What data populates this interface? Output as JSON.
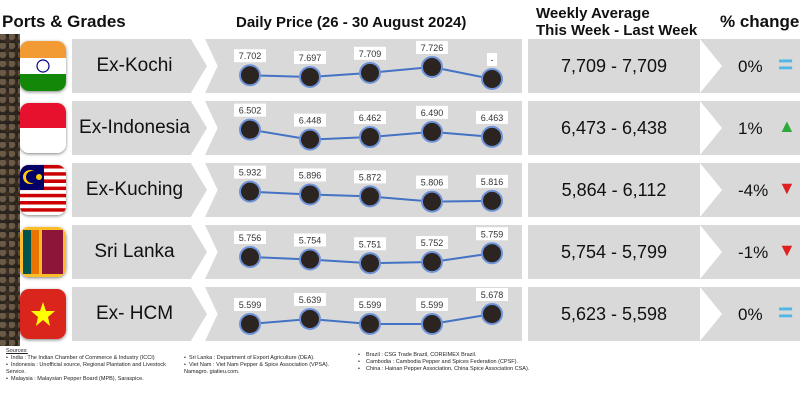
{
  "headers": {
    "ports": "Ports & Grades",
    "daily": "Daily Price (26 - 30 August 2024)",
    "weekly_1": "Weekly Average",
    "weekly_2": "This Week - Last Week",
    "change": "% change"
  },
  "rows": [
    {
      "name": "Ex-Kochi",
      "flag": "india",
      "prices": [
        "7.702",
        "7.697",
        "7.709",
        "7.726",
        "-"
      ],
      "values": [
        7702,
        7697,
        7709,
        7726,
        null
      ],
      "weekly": "7,709 - 7,709",
      "change": "0%",
      "trend": "equal",
      "trend_color": "#4db8e8"
    },
    {
      "name": "Ex-Indonesia",
      "flag": "indonesia",
      "prices": [
        "6.502",
        "6.448",
        "6.462",
        "6.490",
        "6.463"
      ],
      "values": [
        6502,
        6448,
        6462,
        6490,
        6463
      ],
      "weekly": "6,473 - 6,438",
      "change": "1%",
      "trend": "up",
      "trend_color": "#2eaa3a"
    },
    {
      "name": "Ex-Kuching",
      "flag": "malaysia",
      "prices": [
        "5.932",
        "5.896",
        "5.872",
        "5.806",
        "5.816"
      ],
      "values": [
        5932,
        5896,
        5872,
        5806,
        5816
      ],
      "weekly": "5,864 - 6,112",
      "change": "-4%",
      "trend": "down",
      "trend_color": "#e02020"
    },
    {
      "name": "Sri Lanka",
      "flag": "srilanka",
      "prices": [
        "5.756",
        "5.754",
        "5.751",
        "5.752",
        "5.759"
      ],
      "values": [
        5756,
        5754,
        5751,
        5752,
        5759
      ],
      "weekly": "5,754 - 5,799",
      "change": "-1%",
      "trend": "down",
      "trend_color": "#e02020"
    },
    {
      "name": "Ex- HCM",
      "flag": "vietnam",
      "prices": [
        "5.599",
        "5.639",
        "5.599",
        "5.599",
        "5.678"
      ],
      "values": [
        5599,
        5639,
        5599,
        5599,
        5678
      ],
      "weekly": "5,623 - 5,598",
      "change": "0%",
      "trend": "equal",
      "trend_color": "#4db8e8"
    }
  ],
  "sources": {
    "title": "Sources:",
    "col1": [
      "India : The Indian Chamber of Commerce & Industry (ICCI)",
      "Indonesia : Unofficial source, Regional Plantation and Livestock Service.",
      "Malaysia : Malaysian Pepper Board (MPB), Saraspice."
    ],
    "col2": [
      "Sri Lanka : Department of Export Agriculture (DEA).",
      "Viet Nam : Viet Nam Pepper & Spice Association (VPSA). Namagro. giatieu.com."
    ],
    "col3": [
      "Brazil : CSG Trade Brazil, COREIMEX Brazil.",
      "Cambodia : Cambodia Pepper and Spices Federation (CPSF).",
      "China : Hainan Pepper Association, China Spice Association CSA)."
    ]
  }
}
